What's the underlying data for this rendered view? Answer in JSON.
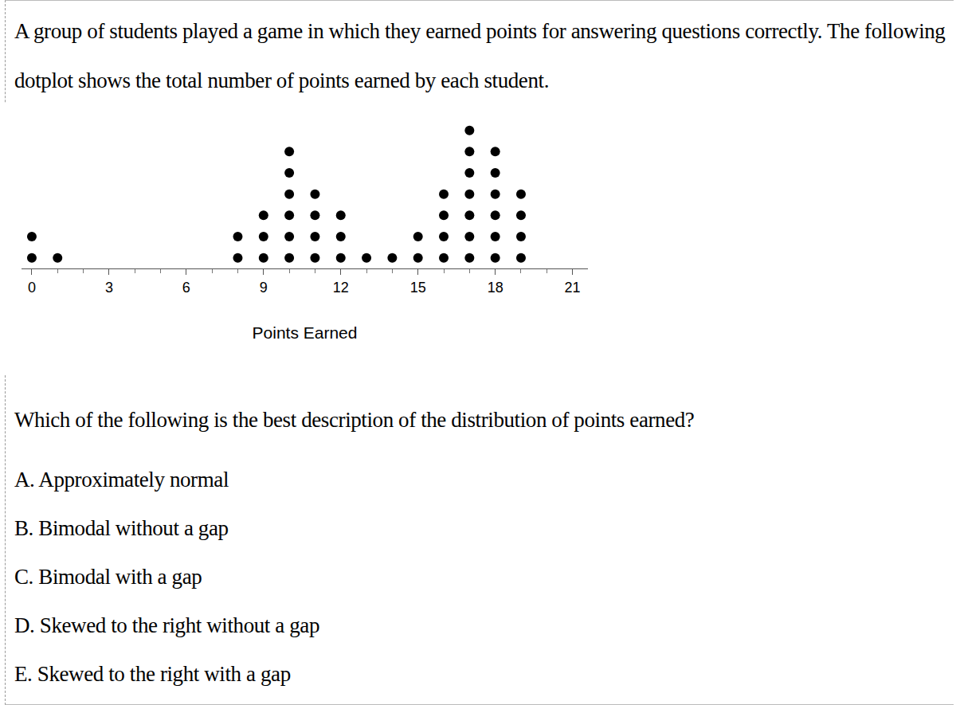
{
  "question": {
    "text": "A group of students played a game in which they earned points for answering questions correctly. The following dotplot shows the total number of points earned by each student.",
    "prompt": "Which of the following is the best description of the distribution of points earned?",
    "options": [
      {
        "letter": "A.",
        "text": "Approximately normal"
      },
      {
        "letter": "B.",
        "text": "Bimodal without a gap"
      },
      {
        "letter": "C.",
        "text": "Bimodal with a gap"
      },
      {
        "letter": "D.",
        "text": "Skewed to the right without a gap"
      },
      {
        "letter": "E.",
        "text": "Skewed to the right with a gap"
      }
    ]
  },
  "chart_data": {
    "type": "dotplot",
    "x": [
      0,
      1,
      8,
      9,
      10,
      11,
      12,
      13,
      14,
      15,
      16,
      17,
      18,
      19
    ],
    "values": [
      2,
      1,
      2,
      3,
      6,
      4,
      3,
      1,
      1,
      2,
      4,
      7,
      6,
      4
    ],
    "xlim": [
      -0.4,
      21.6
    ],
    "xticks": [
      0,
      3,
      6,
      9,
      12,
      15,
      18,
      21
    ],
    "x_label": "Points Earned",
    "color": "#000000",
    "tick_labels": "x"
  }
}
